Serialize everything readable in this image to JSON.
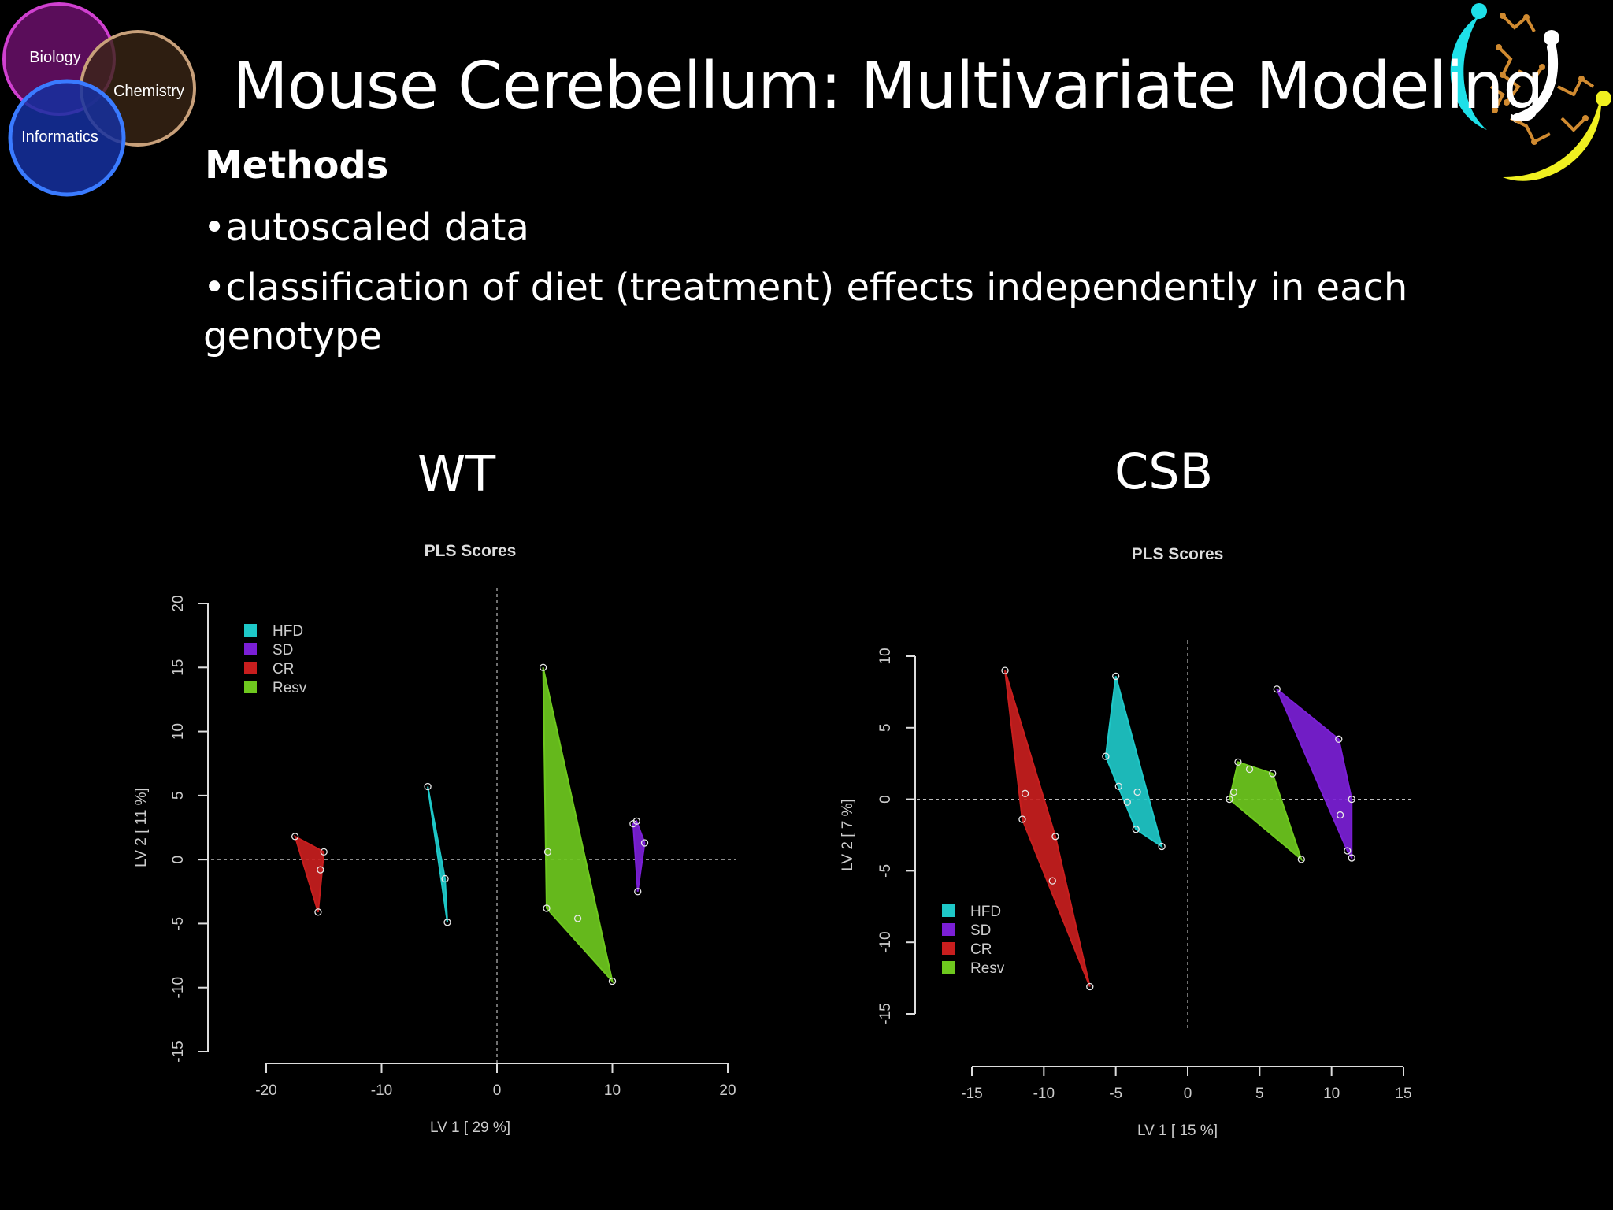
{
  "slide": {
    "title": "Mouse Cerebellum: Multivariate Modeling",
    "methods_heading": "Methods",
    "bullets": [
      "•autoscaled data",
      "•classification of diet (treatment) effects independently in each genotype"
    ],
    "venn": {
      "biology": "Biology",
      "chemistry": "Chemistry",
      "informatics": "Informatics"
    },
    "panel_titles": [
      "WT",
      "CSB"
    ]
  },
  "colors": {
    "HFD": "#1ec8c8",
    "SD": "#7b1fd6",
    "CR": "#c81e1e",
    "Resv": "#6ec81e"
  },
  "chart_data": [
    {
      "type": "scatter",
      "title": "PLS Scores",
      "xlabel": "LV 1 [ 29 %]",
      "ylabel": "LV 2 [ 11 %]",
      "xlim": [
        -20,
        20
      ],
      "ylim": [
        -15,
        20
      ],
      "xticks": [
        -20,
        -10,
        0,
        10,
        20
      ],
      "yticks": [
        -15,
        -10,
        -5,
        0,
        5,
        10,
        15,
        20
      ],
      "legend": [
        "HFD",
        "SD",
        "CR",
        "Resv"
      ],
      "legend_position": "top-left",
      "series": [
        {
          "name": "HFD",
          "hull": true,
          "points": [
            [
              -6.0,
              5.7
            ],
            [
              -4.5,
              -1.5
            ],
            [
              -4.3,
              -4.9
            ]
          ]
        },
        {
          "name": "SD",
          "hull": true,
          "points": [
            [
              11.8,
              2.8
            ],
            [
              12.1,
              3.0
            ],
            [
              12.8,
              1.3
            ],
            [
              12.2,
              -2.5
            ]
          ]
        },
        {
          "name": "CR",
          "hull": true,
          "points": [
            [
              -17.5,
              1.8
            ],
            [
              -15.0,
              0.6
            ],
            [
              -15.3,
              -0.8
            ],
            [
              -15.5,
              -4.1
            ]
          ]
        },
        {
          "name": "Resv",
          "hull": true,
          "points": [
            [
              4.0,
              15.0
            ],
            [
              4.4,
              0.6
            ],
            [
              4.3,
              -3.8
            ],
            [
              7.0,
              -4.6
            ],
            [
              10.0,
              -9.5
            ]
          ]
        }
      ]
    },
    {
      "type": "scatter",
      "title": "PLS Scores",
      "xlabel": "LV 1 [ 15 %]",
      "ylabel": "LV 2 [ 7 %]",
      "xlim": [
        -15,
        15
      ],
      "ylim": [
        -15,
        10
      ],
      "xticks": [
        -15,
        -10,
        -5,
        0,
        5,
        10,
        15
      ],
      "yticks": [
        -15,
        -10,
        -5,
        0,
        5,
        10
      ],
      "legend": [
        "HFD",
        "SD",
        "CR",
        "Resv"
      ],
      "legend_position": "bottom-left",
      "series": [
        {
          "name": "HFD",
          "hull": true,
          "points": [
            [
              -5.0,
              8.6
            ],
            [
              -5.7,
              3.0
            ],
            [
              -4.8,
              0.9
            ],
            [
              -4.2,
              -0.2
            ],
            [
              -3.5,
              0.5
            ],
            [
              -3.6,
              -2.1
            ],
            [
              -1.8,
              -3.3
            ]
          ]
        },
        {
          "name": "SD",
          "hull": true,
          "points": [
            [
              6.2,
              7.7
            ],
            [
              10.5,
              4.2
            ],
            [
              11.4,
              0.0
            ],
            [
              10.6,
              -1.1
            ],
            [
              11.1,
              -3.6
            ],
            [
              11.4,
              -4.1
            ]
          ]
        },
        {
          "name": "CR",
          "hull": true,
          "points": [
            [
              -12.7,
              9.0
            ],
            [
              -11.3,
              0.4
            ],
            [
              -11.5,
              -1.4
            ],
            [
              -9.2,
              -2.6
            ],
            [
              -9.4,
              -5.7
            ],
            [
              -6.8,
              -13.1
            ]
          ]
        },
        {
          "name": "Resv",
          "hull": true,
          "points": [
            [
              3.5,
              2.6
            ],
            [
              4.3,
              2.1
            ],
            [
              5.9,
              1.8
            ],
            [
              3.2,
              0.5
            ],
            [
              2.9,
              0.0
            ],
            [
              7.9,
              -4.2
            ]
          ]
        }
      ]
    }
  ]
}
